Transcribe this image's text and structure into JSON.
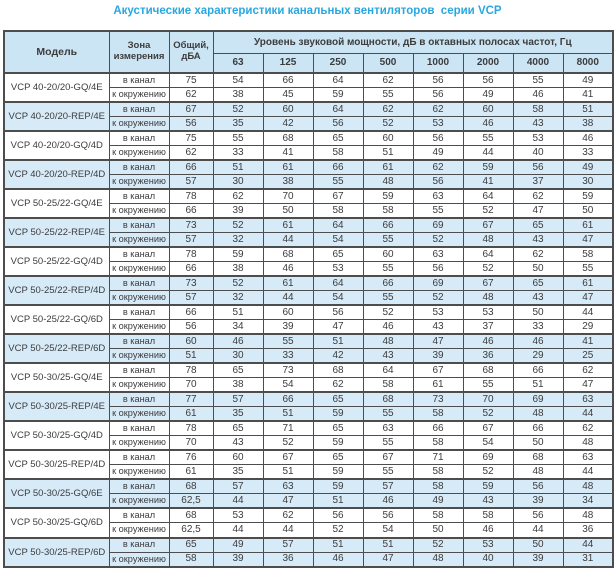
{
  "title": "Акустические характеристики канальных вентиляторов  серии VCP",
  "colors": {
    "accent_title": "#29a8e0",
    "header_fill": "#cbe5f5",
    "stripe_fill": "#d7eaf8",
    "border": "#4d4d4d"
  },
  "table": {
    "headers": {
      "model": "Модель",
      "zone": "Зона измерения",
      "total": "Общий, дБА",
      "octave_title": "Уровень звуковой мощности, дБ в октавных полосах частот, Гц",
      "frequencies": [
        "63",
        "125",
        "250",
        "500",
        "1000",
        "2000",
        "4000",
        "8000"
      ]
    },
    "zone_labels": {
      "duct": "в канал",
      "ambient": "к окружению"
    },
    "models": [
      {
        "name": "VCP 40-20/20-GQ/4E",
        "shaded": false,
        "duct": {
          "total": "75",
          "bands": [
            54,
            66,
            64,
            62,
            56,
            56,
            55,
            49
          ]
        },
        "ambient": {
          "total": "62",
          "bands": [
            38,
            45,
            59,
            55,
            56,
            49,
            46,
            41
          ]
        }
      },
      {
        "name": "VCP 40-20/20-REP/4E",
        "shaded": true,
        "duct": {
          "total": "67",
          "bands": [
            52,
            60,
            64,
            62,
            62,
            60,
            58,
            51
          ]
        },
        "ambient": {
          "total": "56",
          "bands": [
            35,
            42,
            56,
            52,
            53,
            46,
            43,
            38
          ]
        }
      },
      {
        "name": "VCP 40-20/20-GQ/4D",
        "shaded": false,
        "duct": {
          "total": "75",
          "bands": [
            55,
            68,
            65,
            60,
            56,
            55,
            53,
            46
          ]
        },
        "ambient": {
          "total": "62",
          "bands": [
            33,
            41,
            58,
            51,
            49,
            44,
            40,
            33
          ]
        }
      },
      {
        "name": "VCP 40-20/20-REP/4D",
        "shaded": true,
        "duct": {
          "total": "66",
          "bands": [
            51,
            61,
            66,
            61,
            62,
            59,
            56,
            49
          ]
        },
        "ambient": {
          "total": "57",
          "bands": [
            30,
            38,
            55,
            48,
            56,
            41,
            37,
            30
          ]
        }
      },
      {
        "name": "VCP 50-25/22-GQ/4E",
        "shaded": false,
        "duct": {
          "total": "78",
          "bands": [
            62,
            70,
            67,
            59,
            63,
            64,
            62,
            59
          ]
        },
        "ambient": {
          "total": "66",
          "bands": [
            39,
            50,
            58,
            58,
            55,
            52,
            47,
            50
          ]
        }
      },
      {
        "name": "VCP 50-25/22-REP/4E",
        "shaded": true,
        "duct": {
          "total": "73",
          "bands": [
            52,
            61,
            64,
            66,
            69,
            67,
            65,
            61
          ]
        },
        "ambient": {
          "total": "57",
          "bands": [
            32,
            44,
            54,
            55,
            52,
            48,
            43,
            47
          ]
        }
      },
      {
        "name": "VCP 50-25/22-GQ/4D",
        "shaded": false,
        "duct": {
          "total": "78",
          "bands": [
            59,
            68,
            65,
            60,
            63,
            64,
            62,
            58
          ]
        },
        "ambient": {
          "total": "66",
          "bands": [
            38,
            46,
            53,
            55,
            56,
            52,
            50,
            55
          ]
        }
      },
      {
        "name": "VCP 50-25/22-REP/4D",
        "shaded": true,
        "duct": {
          "total": "73",
          "bands": [
            52,
            61,
            64,
            66,
            69,
            67,
            65,
            61
          ]
        },
        "ambient": {
          "total": "57",
          "bands": [
            32,
            44,
            54,
            55,
            52,
            48,
            43,
            47
          ]
        }
      },
      {
        "name": "VCP 50-25/22-GQ/6D",
        "shaded": false,
        "duct": {
          "total": "66",
          "bands": [
            51,
            60,
            56,
            52,
            53,
            53,
            50,
            44
          ]
        },
        "ambient": {
          "total": "56",
          "bands": [
            34,
            39,
            47,
            46,
            43,
            37,
            33,
            29
          ]
        }
      },
      {
        "name": "VCP 50-25/22-REP/6D",
        "shaded": true,
        "duct": {
          "total": "60",
          "bands": [
            46,
            55,
            51,
            48,
            47,
            46,
            46,
            41
          ]
        },
        "ambient": {
          "total": "51",
          "bands": [
            30,
            33,
            42,
            43,
            39,
            36,
            29,
            25
          ]
        }
      },
      {
        "name": "VCP 50-30/25-GQ/4E",
        "shaded": false,
        "duct": {
          "total": "78",
          "bands": [
            65,
            73,
            68,
            64,
            67,
            68,
            66,
            62
          ]
        },
        "ambient": {
          "total": "70",
          "bands": [
            38,
            54,
            62,
            58,
            61,
            55,
            51,
            47
          ]
        }
      },
      {
        "name": "VCP 50-30/25-REP/4E",
        "shaded": true,
        "duct": {
          "total": "77",
          "bands": [
            57,
            66,
            65,
            68,
            73,
            70,
            69,
            63
          ]
        },
        "ambient": {
          "total": "61",
          "bands": [
            35,
            51,
            59,
            55,
            58,
            52,
            48,
            44
          ]
        }
      },
      {
        "name": "VCP 50-30/25-GQ/4D",
        "shaded": false,
        "duct": {
          "total": "78",
          "bands": [
            65,
            71,
            65,
            63,
            66,
            67,
            66,
            62
          ]
        },
        "ambient": {
          "total": "70",
          "bands": [
            43,
            52,
            59,
            55,
            58,
            54,
            50,
            48
          ]
        }
      },
      {
        "name": "VCP 50-30/25-REP/4D",
        "shaded": false,
        "duct": {
          "total": "76",
          "bands": [
            60,
            67,
            65,
            67,
            71,
            69,
            68,
            63
          ]
        },
        "ambient": {
          "total": "61",
          "bands": [
            35,
            51,
            59,
            55,
            58,
            52,
            48,
            44
          ]
        }
      },
      {
        "name": "VCP 50-30/25-GQ/6E",
        "shaded": true,
        "duct": {
          "total": "68",
          "bands": [
            57,
            63,
            59,
            57,
            58,
            59,
            56,
            48
          ]
        },
        "ambient": {
          "total": "62,5",
          "bands": [
            44,
            47,
            51,
            46,
            49,
            43,
            39,
            34
          ]
        }
      },
      {
        "name": "VCP 50-30/25-GQ/6D",
        "shaded": false,
        "duct": {
          "total": "68",
          "bands": [
            53,
            62,
            56,
            56,
            58,
            58,
            56,
            48
          ]
        },
        "ambient": {
          "total": "62,5",
          "bands": [
            44,
            44,
            52,
            54,
            50,
            46,
            44,
            36
          ]
        }
      },
      {
        "name": "VCP 50-30/25-REP/6D",
        "shaded": true,
        "duct": {
          "total": "65",
          "bands": [
            49,
            57,
            51,
            51,
            52,
            53,
            50,
            44
          ]
        },
        "ambient": {
          "total": "58",
          "bands": [
            39,
            36,
            46,
            47,
            48,
            40,
            39,
            31
          ]
        }
      }
    ]
  }
}
